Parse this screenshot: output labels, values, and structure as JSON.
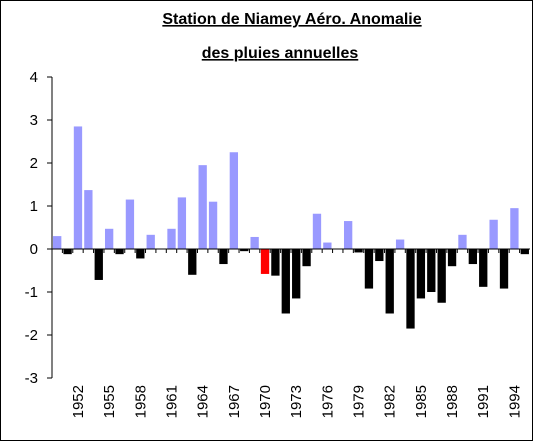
{
  "chart_data": {
    "type": "bar",
    "title": [
      "Station de Niamey Aéro. Anomalie",
      "des pluies annuelles"
    ],
    "categories": [
      null,
      null,
      "1952",
      null,
      null,
      "1955",
      null,
      null,
      "1958",
      null,
      null,
      "1961",
      null,
      null,
      "1964",
      null,
      null,
      "1967",
      null,
      null,
      "1970",
      null,
      null,
      "1973",
      null,
      null,
      "1976",
      null,
      null,
      "1979",
      null,
      null,
      "1982",
      null,
      null,
      "1985",
      null,
      null,
      "1988",
      null,
      null,
      "1991",
      null,
      null,
      "1994",
      null
    ],
    "values": [
      0.3,
      -0.12,
      2.85,
      1.37,
      -0.72,
      0.47,
      -0.12,
      1.15,
      -0.22,
      0.33,
      0,
      0.47,
      1.2,
      -0.6,
      1.95,
      1.1,
      -0.35,
      2.25,
      -0.05,
      0.28,
      -0.58,
      -0.62,
      -1.5,
      -1.15,
      -0.4,
      0.82,
      0.15,
      0,
      0.65,
      -0.08,
      -0.92,
      -0.28,
      -1.5,
      0.22,
      -1.85,
      -1.15,
      -1.0,
      -1.25,
      -0.4,
      0.33,
      -0.35,
      -0.88,
      0.68,
      -0.92,
      0.95,
      -0.12
    ],
    "positive_color": "#9999ff",
    "negative_color": "#000000",
    "highlight_index": 20,
    "highlight_color": "#ff0000",
    "ylim": [
      -3,
      4
    ],
    "yticks": [
      -3,
      -2,
      -1,
      0,
      1,
      2,
      3,
      4
    ],
    "grid": false
  }
}
